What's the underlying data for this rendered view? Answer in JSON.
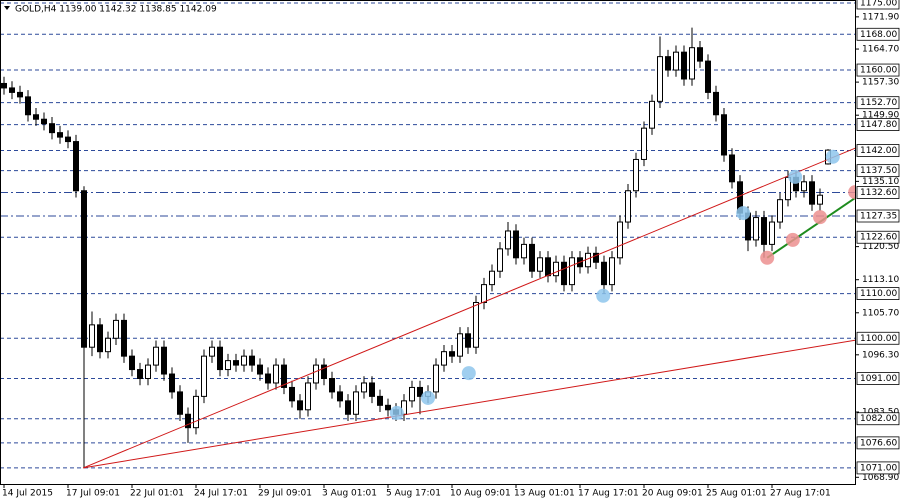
{
  "chart_data": {
    "type": "candlestick",
    "title": "GOLD,H4  1139.00 1142.32 1138.85 1142.09",
    "categories": [
      "14 Jul 2015",
      null,
      null,
      null,
      null,
      null,
      null,
      null,
      "17 Jul 09:01",
      null,
      null,
      null,
      null,
      null,
      null,
      null,
      "22 Jul 01:01",
      null,
      null,
      null,
      null,
      null,
      null,
      null,
      "24 Jul 17:01",
      null,
      null,
      null,
      null,
      null,
      null,
      null,
      "29 Jul 09:01",
      null,
      null,
      null,
      null,
      null,
      null,
      null,
      "3 Aug 01:01",
      null,
      null,
      null,
      null,
      null,
      null,
      null,
      "5 Aug 17:01",
      null,
      null,
      null,
      null,
      null,
      null,
      null,
      "10 Aug 09:01",
      null,
      null,
      null,
      null,
      null,
      null,
      null,
      "13 Aug 01:01",
      null,
      null,
      null,
      null,
      null,
      null,
      null,
      "17 Aug 17:01",
      null,
      null,
      null,
      null,
      null,
      null,
      null,
      "20 Aug 09:01",
      null,
      null,
      null,
      null,
      null,
      null,
      null,
      "25 Aug 01:01",
      null,
      null,
      null,
      null,
      null,
      null,
      null,
      "27 Aug 17:01",
      null,
      null,
      null,
      null,
      null,
      null,
      null
    ],
    "open": [
      1157,
      1156,
      1155,
      1154,
      1150,
      1149,
      1148,
      1146,
      1145,
      1144,
      1133,
      1098,
      1103,
      1097,
      1100,
      1104,
      1096,
      1093,
      1091,
      1094,
      1098,
      1092,
      1088,
      1083,
      1080,
      1087,
      1096,
      1098,
      1093,
      1095,
      1094,
      1096,
      1094,
      1092,
      1090,
      1094,
      1089,
      1086,
      1084,
      1090,
      1094,
      1091,
      1088,
      1086,
      1083,
      1088,
      1090,
      1087,
      1085,
      1084,
      1083,
      1086,
      1089,
      1087,
      1088,
      1094,
      1097,
      1096,
      1101,
      1098,
      1108,
      1112,
      1115,
      1120,
      1124,
      1118,
      1121,
      1115,
      1118,
      1114,
      1117,
      1112,
      1118,
      1116,
      1119,
      1117,
      1112,
      1118,
      1126,
      1133,
      1140,
      1147,
      1153,
      1163,
      1160,
      1164,
      1158,
      1165,
      1162,
      1155,
      1150,
      1141,
      1135,
      1128,
      1122,
      1127,
      1121,
      1126,
      1131,
      1136,
      1133,
      1135,
      1130,
      1139
    ],
    "high": [
      1158.5,
      1157.5,
      1156.5,
      1155.5,
      1151.5,
      1150.5,
      1149.5,
      1147.5,
      1146.5,
      1145.5,
      1134,
      1106,
      1104.5,
      1101.5,
      1105.5,
      1105.5,
      1097.5,
      1094.5,
      1095.5,
      1099.5,
      1099.5,
      1093.5,
      1089.5,
      1084.5,
      1088.5,
      1097.5,
      1099.5,
      1099.5,
      1096.5,
      1096.5,
      1097.5,
      1097.5,
      1095.5,
      1093.5,
      1095.5,
      1095.5,
      1090.5,
      1087.5,
      1091.5,
      1095.5,
      1095.5,
      1092.5,
      1089.5,
      1087.5,
      1089.5,
      1091.5,
      1091.5,
      1088.5,
      1086.5,
      1085.5,
      1087.5,
      1090.5,
      1090.5,
      1089.5,
      1095.5,
      1098.5,
      1098.5,
      1102.5,
      1102.5,
      1109.5,
      1113.5,
      1116.5,
      1121.5,
      1126,
      1125.5,
      1122.5,
      1122.5,
      1119.5,
      1119.5,
      1118.5,
      1118.5,
      1119.5,
      1119.5,
      1120.5,
      1120.5,
      1118.5,
      1119.5,
      1127.5,
      1134.5,
      1141.5,
      1148.5,
      1154.5,
      1167.5,
      1164.5,
      1165.5,
      1165.5,
      1169.5,
      1166.5,
      1163.5,
      1156.5,
      1151.5,
      1142.5,
      1136.5,
      1129.5,
      1128.5,
      1128.5,
      1127.5,
      1132.5,
      1137.5,
      1137.5,
      1136.5,
      1136.5,
      1133.5,
      1142.32
    ],
    "low": [
      1154.5,
      1153.5,
      1152.5,
      1148.5,
      1147.5,
      1146.5,
      1144.5,
      1143.5,
      1142.5,
      1131.5,
      1071,
      1096,
      1095.5,
      1095.5,
      1098.5,
      1094.5,
      1091.5,
      1089.5,
      1089.5,
      1092.5,
      1090.5,
      1086.5,
      1081.5,
      1076.6,
      1078.5,
      1085.5,
      1094.5,
      1091.5,
      1091.5,
      1092.5,
      1092.5,
      1092.5,
      1090.5,
      1088.5,
      1088.5,
      1087.5,
      1084.5,
      1082,
      1082.5,
      1088.5,
      1089.5,
      1086.5,
      1084.5,
      1081.5,
      1081.5,
      1086.5,
      1085.5,
      1083.5,
      1082.5,
      1081.5,
      1081.5,
      1084.5,
      1083,
      1085.5,
      1086.5,
      1092.5,
      1094.5,
      1094.5,
      1096.5,
      1096.5,
      1106.5,
      1110.5,
      1113.5,
      1118.5,
      1116.5,
      1116.5,
      1113.5,
      1113.5,
      1112.5,
      1112.5,
      1110.5,
      1110.5,
      1114.5,
      1114.5,
      1115.5,
      1110,
      1110.5,
      1116.5,
      1124.5,
      1131.5,
      1138.5,
      1145.5,
      1151.5,
      1158.5,
      1158.5,
      1156.5,
      1156.5,
      1160.5,
      1153.5,
      1148.5,
      1139.5,
      1133.5,
      1126.5,
      1119.5,
      1120.5,
      1118,
      1119.5,
      1124.5,
      1129.5,
      1131.5,
      1131.5,
      1128.5,
      1128.5,
      1138.85
    ],
    "close": [
      1156,
      1155,
      1154,
      1150,
      1149,
      1148,
      1146,
      1145,
      1144,
      1133,
      1098,
      1103,
      1097,
      1100,
      1104,
      1096,
      1093,
      1091,
      1094,
      1098,
      1092,
      1088,
      1083,
      1080,
      1087,
      1096,
      1098,
      1093,
      1095,
      1094,
      1096,
      1094,
      1092,
      1090,
      1094,
      1089,
      1086,
      1084,
      1090,
      1094,
      1091,
      1088,
      1086,
      1083,
      1088,
      1090,
      1087,
      1085,
      1084,
      1083,
      1086,
      1089,
      1087,
      1088,
      1094,
      1097,
      1096,
      1101,
      1098,
      1108,
      1112,
      1115,
      1120,
      1124,
      1118,
      1121,
      1115,
      1118,
      1114,
      1117,
      1112,
      1118,
      1116,
      1119,
      1117,
      1112,
      1118,
      1126,
      1133,
      1140,
      1147,
      1153,
      1163,
      1160,
      1164,
      1158,
      1165,
      1162,
      1155,
      1150,
      1141,
      1135,
      1128,
      1122,
      1127,
      1121,
      1126,
      1131,
      1136,
      1133,
      1135,
      1130,
      1132,
      1142.09
    ],
    "color": "#000000",
    "ylim": [
      1067.4,
      1175.67
    ],
    "yticks": [
      {
        "value": 1171.9,
        "label": "1171.90"
      },
      {
        "value": 1164.7,
        "label": "1164.70"
      },
      {
        "value": 1157.3,
        "label": "1157.30"
      },
      {
        "value": 1149.9,
        "label": "1149.90"
      },
      {
        "value": 1135.1,
        "label": "1135.10"
      },
      {
        "value": 1120.5,
        "label": "1120.50"
      },
      {
        "value": 1113.1,
        "label": "1113.10"
      },
      {
        "value": 1105.7,
        "label": "1105.70"
      },
      {
        "value": 1096.3,
        "label": "1096.30"
      },
      {
        "value": 1083.5,
        "label": "1083.50"
      },
      {
        "value": 1068.9,
        "label": "1068.90"
      }
    ],
    "levels": [
      {
        "value": 1175,
        "label": "1175.00",
        "style": "dash"
      },
      {
        "value": 1168,
        "label": "1168.00",
        "style": "dash"
      },
      {
        "value": 1160,
        "label": "1160.00",
        "style": "dash"
      },
      {
        "value": 1152.7,
        "label": "1152.70",
        "style": "dash"
      },
      {
        "value": 1147.8,
        "label": "1147.80",
        "style": "dash"
      },
      {
        "value": 1142,
        "label": "1142.00",
        "style": "dash"
      },
      {
        "value": 1137.5,
        "label": "1137.50",
        "style": "dash"
      },
      {
        "value": 1132.6,
        "label": "1132.60",
        "style": "dashdot"
      },
      {
        "value": 1127.35,
        "label": "1127.35",
        "style": "dashdot"
      },
      {
        "value": 1122.6,
        "label": "1122.60",
        "style": "dash"
      },
      {
        "value": 1110,
        "label": "1110.00",
        "style": "dash"
      },
      {
        "value": 1100,
        "label": "1100.00",
        "style": "dash"
      },
      {
        "value": 1091,
        "label": "1091.00",
        "style": "dash"
      },
      {
        "value": 1082,
        "label": "1082.00",
        "style": "dash"
      },
      {
        "value": 1076.6,
        "label": "1076.60",
        "style": "dash"
      },
      {
        "value": 1071,
        "label": "1071.00",
        "style": "dash"
      }
    ],
    "level_color": "#2d4a9a",
    "trendlines": [
      {
        "color": "#d01818",
        "x": [
          9.9,
          106.5
        ],
        "y": [
          1071,
          1142.6
        ]
      },
      {
        "color": "#d01818",
        "x": [
          9.9,
          106.5
        ],
        "y": [
          1071,
          1099.6
        ]
      },
      {
        "color": "#1e8c1e",
        "x": [
          95.4,
          106.4
        ],
        "y": [
          1118,
          1131.4
        ]
      }
    ],
    "markers": [
      {
        "color": "#8ec5ec",
        "x": 49.1,
        "y": 1083.3
      },
      {
        "color": "#8ec5ec",
        "x": 53,
        "y": 1086.65
      },
      {
        "color": "#8ec5ec",
        "x": 58.1,
        "y": 1092.2
      },
      {
        "color": "#8ec5ec",
        "x": 74.9,
        "y": 1109.5
      },
      {
        "color": "#8ec5ec",
        "x": 92.4,
        "y": 1128
      },
      {
        "color": "#8ec5ec",
        "x": 98.9,
        "y": 1136.1
      },
      {
        "color": "#8ec5ec",
        "x": 103.6,
        "y": 1140.6
      },
      {
        "color": "#ec8f8f",
        "x": 95.4,
        "y": 1118
      },
      {
        "color": "#ec8f8f",
        "x": 98.6,
        "y": 1122
      },
      {
        "color": "#ec8f8f",
        "x": 102,
        "y": 1127.1
      },
      {
        "color": "#ec8f8f",
        "x": 106.4,
        "y": 1132.7
      }
    ]
  }
}
